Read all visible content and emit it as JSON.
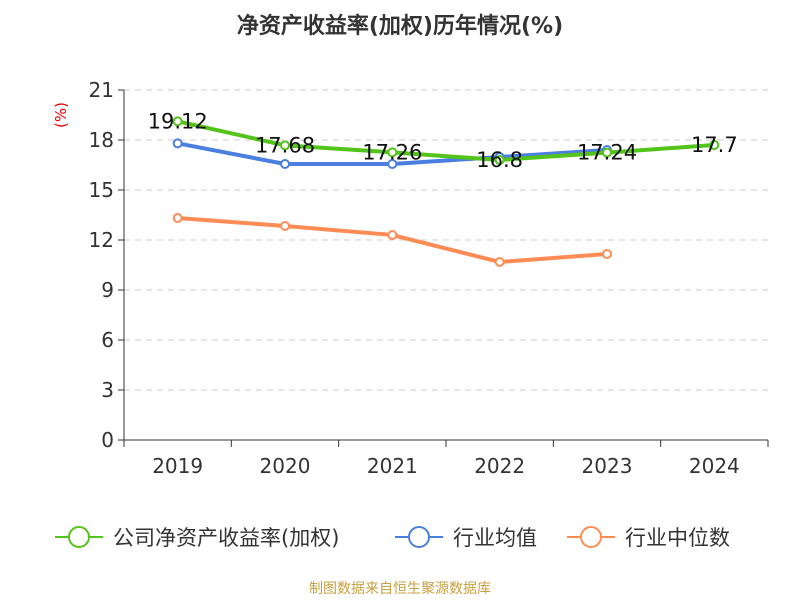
{
  "title": "净资产收益率(加权)历年情况(%)",
  "source": "制图数据来自恒生聚源数据库",
  "chart_data": {
    "type": "line",
    "title": "净资产收益率(加权)历年情况(%)",
    "ylabel": "(%)",
    "categories": [
      "2019",
      "2020",
      "2021",
      "2022",
      "2023",
      "2024"
    ],
    "ylim": [
      0,
      21
    ],
    "yticks": [
      0,
      3,
      6,
      9,
      12,
      15,
      18,
      21
    ],
    "grid": true,
    "legend_position": "bottom",
    "series": [
      {
        "name": "公司净资产收益率(加权)",
        "color": "#52c41a",
        "values": [
          19.12,
          17.68,
          17.26,
          16.8,
          17.24,
          17.7
        ],
        "labels": true
      },
      {
        "name": "行业均值",
        "color": "#4a7fe0",
        "values": [
          17.8,
          16.56,
          16.56,
          16.98,
          17.4,
          null
        ],
        "labels": false
      },
      {
        "name": "行业中位数",
        "color": "#ff8c55",
        "values": [
          13.32,
          12.84,
          12.3,
          10.68,
          11.16,
          null
        ],
        "labels": false
      }
    ]
  }
}
